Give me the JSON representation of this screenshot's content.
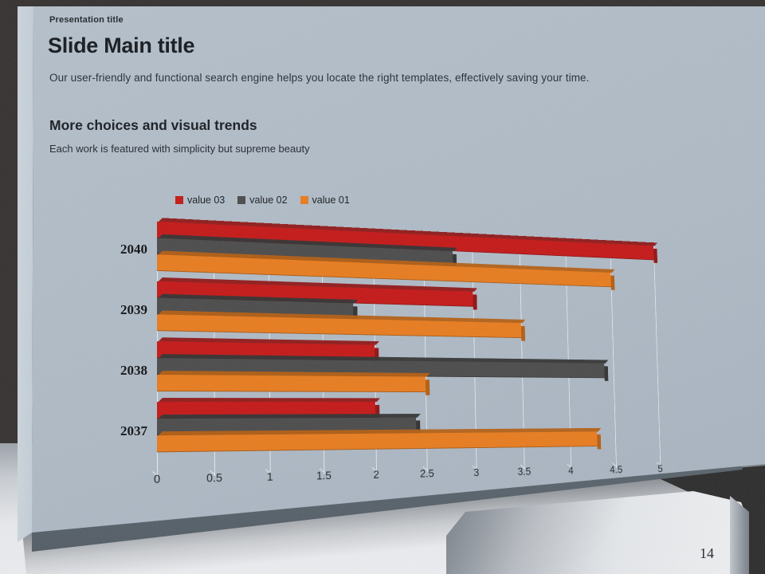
{
  "slide": {
    "eyebrow": "Presentation title",
    "title": "Slide Main title",
    "subtitle": "Our user-friendly and functional search engine helps you locate the right templates, effectively saving your time.",
    "section_heading": "More choices and visual trends",
    "section_subtitle": "Each work is featured with simplicity but supreme beauty",
    "page_number": "14"
  },
  "colors": {
    "slide_face": "#aebac6",
    "background_dark": "#312d2c",
    "floor_light": "#e9ebee",
    "gridline": "rgba(255,255,255,0.72)"
  },
  "chart_data": {
    "type": "bar",
    "orientation": "horizontal",
    "style": "3d-perspective",
    "title": "",
    "xlabel": "",
    "ylabel": "",
    "categories": [
      "2040",
      "2039",
      "2038",
      "2037"
    ],
    "series": [
      {
        "name": "value 03",
        "color": "#c51313",
        "dark": "#8e0f0f",
        "values": [
          5,
          3,
          2,
          2
        ]
      },
      {
        "name": "value 02",
        "color": "#484848",
        "dark": "#2e2e2e",
        "values": [
          2.8,
          1.8,
          4.4,
          2.4
        ]
      },
      {
        "name": "value 01",
        "color": "#e97a1a",
        "dark": "#b45c0e",
        "values": [
          4.5,
          3.5,
          2.5,
          4.3
        ]
      }
    ],
    "xlim": [
      0,
      5
    ],
    "x_ticks": [
      0,
      0.5,
      1,
      1.5,
      2,
      2.5,
      3,
      3.5,
      4,
      4.5,
      5
    ],
    "x_tick_labels": [
      "0",
      "0.5",
      "1",
      "1.5",
      "2",
      "2.5",
      "3",
      "3.5",
      "4",
      "4.5",
      "5"
    ],
    "legend_position": "top",
    "grid": true
  }
}
